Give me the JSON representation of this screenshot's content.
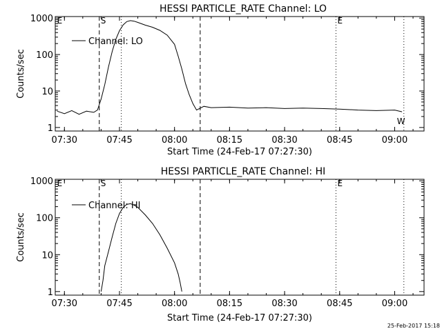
{
  "footer_timestamp": "25-Feb-2017 15:18",
  "chart_data": [
    {
      "type": "line",
      "title": "HESSI PARTICLE_RATE Channel: LO",
      "xlabel": "Start Time (24-Feb-17 07:27:30)",
      "ylabel": "Counts/sec",
      "yscale": "log",
      "x_tick_labels": [
        "07:30",
        "07:45",
        "08:00",
        "08:15",
        "08:30",
        "08:45",
        "09:00"
      ],
      "y_tick_labels": [
        "1",
        "10",
        "100",
        "1000"
      ],
      "xlim": [
        "07:27:30",
        "09:08:00"
      ],
      "ylim": [
        0.8,
        1100
      ],
      "legend": {
        "location": "top-left"
      },
      "vertical_lines": [
        {
          "time": "07:39:30",
          "style": "dashed",
          "marker": "S"
        },
        {
          "time": "07:45:30",
          "style": "dotted"
        },
        {
          "time": "08:07:00",
          "style": "dashed"
        },
        {
          "time": "08:44:00",
          "style": "dotted",
          "marker": "E"
        },
        {
          "time": "09:02:30",
          "style": "dotted"
        }
      ],
      "markers": [
        {
          "text": "E",
          "time": "07:28:00"
        },
        {
          "text": "W",
          "time": "09:01:00"
        }
      ],
      "series": [
        {
          "name": "Channel: LO",
          "x": [
            "07:28:00",
            "07:30:00",
            "07:32:00",
            "07:34:00",
            "07:36:00",
            "07:38:00",
            "07:39:00",
            "07:40:00",
            "07:41:00",
            "07:42:00",
            "07:43:00",
            "07:44:00",
            "07:45:00",
            "07:46:00",
            "07:47:00",
            "07:48:00",
            "07:49:00",
            "07:50:00",
            "07:52:00",
            "07:54:00",
            "07:56:00",
            "07:58:00",
            "08:00:00",
            "08:01:00",
            "08:02:00",
            "08:03:00",
            "08:04:00",
            "08:05:00",
            "08:06:00",
            "08:08:00",
            "08:10:00",
            "08:15:00",
            "08:20:00",
            "08:25:00",
            "08:30:00",
            "08:35:00",
            "08:40:00",
            "08:45:00",
            "08:50:00",
            "08:55:00",
            "09:00:00",
            "09:02:00"
          ],
          "y": [
            2.8,
            2.4,
            2.9,
            2.3,
            2.8,
            2.6,
            3.0,
            6,
            15,
            45,
            120,
            260,
            450,
            650,
            800,
            850,
            820,
            760,
            640,
            560,
            460,
            340,
            190,
            90,
            40,
            16,
            8,
            4.5,
            3.0,
            3.8,
            3.5,
            3.6,
            3.4,
            3.5,
            3.3,
            3.4,
            3.3,
            3.2,
            3.0,
            2.9,
            3.0,
            2.7
          ]
        }
      ]
    },
    {
      "type": "line",
      "title": "HESSI PARTICLE_RATE Channel: HI",
      "xlabel": "Start Time (24-Feb-17 07:27:30)",
      "ylabel": "Counts/sec",
      "yscale": "log",
      "x_tick_labels": [
        "07:30",
        "07:45",
        "08:00",
        "08:15",
        "08:30",
        "08:45",
        "09:00"
      ],
      "y_tick_labels": [
        "1",
        "10",
        "100",
        "1000"
      ],
      "xlim": [
        "07:27:30",
        "09:08:00"
      ],
      "ylim": [
        0.8,
        1100
      ],
      "legend": {
        "location": "top-left"
      },
      "vertical_lines": [
        {
          "time": "07:39:30",
          "style": "dashed",
          "marker": "S"
        },
        {
          "time": "07:45:30",
          "style": "dotted"
        },
        {
          "time": "08:07:00",
          "style": "dashed"
        },
        {
          "time": "08:44:00",
          "style": "dotted",
          "marker": "E"
        },
        {
          "time": "09:02:30",
          "style": "dotted"
        }
      ],
      "markers": [
        {
          "text": "E",
          "time": "07:28:00"
        }
      ],
      "series": [
        {
          "name": "Channel: HI",
          "x": [
            "07:40:00",
            "07:40:30",
            "07:41:00",
            "07:42:00",
            "07:43:00",
            "07:44:00",
            "07:45:00",
            "07:46:00",
            "07:47:00",
            "07:48:00",
            "07:49:00",
            "07:50:00",
            "07:52:00",
            "07:54:00",
            "07:56:00",
            "07:58:00",
            "08:00:00",
            "08:01:00",
            "08:01:30",
            "08:02:00"
          ],
          "y": [
            1,
            2,
            5,
            12,
            30,
            70,
            130,
            190,
            230,
            240,
            220,
            190,
            120,
            70,
            35,
            15,
            6,
            3,
            1.8,
            1
          ]
        }
      ]
    }
  ]
}
